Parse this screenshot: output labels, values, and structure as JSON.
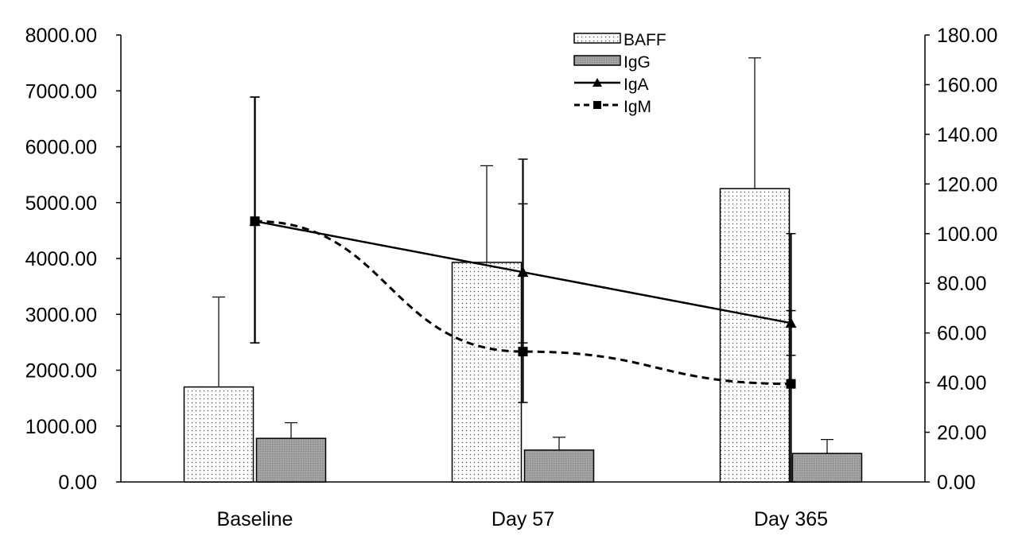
{
  "chart_data": {
    "type": "bar",
    "categories": [
      "Baseline",
      "Day 57",
      "Day 365"
    ],
    "left_axis": {
      "range": [
        0,
        8000
      ],
      "ticks": [
        0,
        1000,
        2000,
        3000,
        4000,
        5000,
        6000,
        7000,
        8000
      ],
      "tick_labels": [
        "0.00",
        "1000.00",
        "2000.00",
        "3000.00",
        "4000.00",
        "5000.00",
        "6000.00",
        "7000.00",
        "8000.00"
      ]
    },
    "right_axis": {
      "range": [
        0,
        180
      ],
      "ticks": [
        0,
        20,
        40,
        60,
        80,
        100,
        120,
        140,
        160,
        180
      ],
      "tick_labels": [
        "0.00",
        "20.00",
        "40.00",
        "60.00",
        "80.00",
        "100.00",
        "120.00",
        "140.00",
        "160.00",
        "180.00"
      ]
    },
    "series": [
      {
        "name": "BAFF",
        "type": "bar",
        "axis": "left",
        "fill": "dotted",
        "values": [
          1700,
          3930,
          5250
        ],
        "error_upper": [
          3310,
          5660,
          7590
        ]
      },
      {
        "name": "IgG",
        "type": "bar",
        "axis": "left",
        "fill": "#9a9a9a",
        "values": [
          780,
          570,
          510
        ],
        "error_upper": [
          1060,
          800,
          760
        ]
      },
      {
        "name": "IgA",
        "type": "line",
        "axis": "right",
        "marker": "triangle",
        "dash": "solid",
        "values": [
          105,
          84.5,
          64
        ],
        "error_low": [
          56,
          56,
          51
        ],
        "error_high": [
          155,
          112,
          69
        ]
      },
      {
        "name": "IgM",
        "type": "line",
        "axis": "right",
        "marker": "square",
        "dash": "dashed",
        "values": [
          105,
          52.5,
          39.5
        ],
        "error_low": [
          56,
          32,
          0
        ],
        "error_high": [
          155,
          130,
          100
        ]
      }
    ],
    "legend_position": "top-center",
    "grid": false,
    "title": "",
    "xlabel": "",
    "ylabel": ""
  }
}
